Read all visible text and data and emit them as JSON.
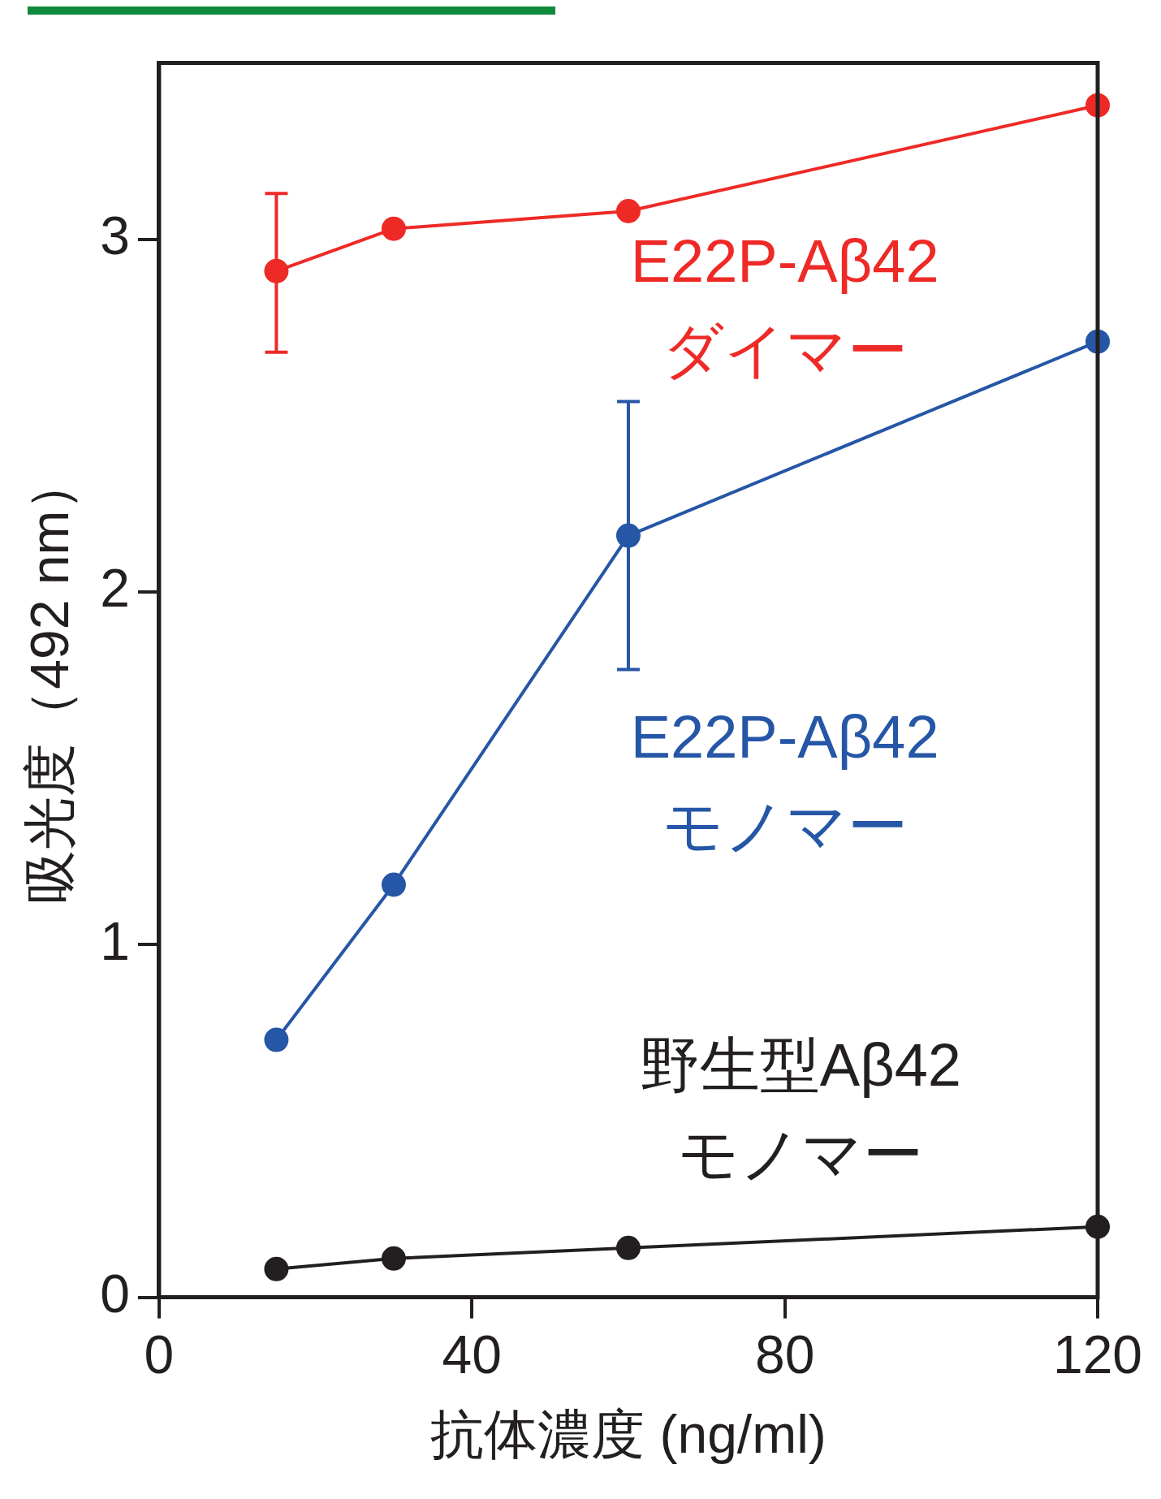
{
  "chart_data": {
    "type": "line",
    "xlabel": "抗体濃度 (ng/ml)",
    "ylabel": "吸光度（492 nm）",
    "x": [
      15,
      30,
      60,
      120
    ],
    "xlim": [
      0,
      120
    ],
    "xticks": [
      0,
      40,
      80,
      120
    ],
    "ylim": [
      0,
      3.5
    ],
    "yticks": [
      0,
      1,
      2,
      3
    ],
    "grid": false,
    "legend": false,
    "marker": "circle",
    "line_style": "solid",
    "series": [
      {
        "name": "E22P-Aβ42\nダイマー",
        "color": "#ee2a27",
        "values": [
          2.91,
          3.03,
          3.08,
          3.38
        ],
        "errors": [
          [
            2.68,
            3.13
          ],
          null,
          null,
          null
        ]
      },
      {
        "name": "E22P-Aβ42\nモノマー",
        "color": "#2656a6",
        "values": [
          0.73,
          1.17,
          2.16,
          2.71
        ],
        "errors": [
          null,
          null,
          [
            1.78,
            2.54
          ],
          null
        ]
      },
      {
        "name": "野生型Aβ42\nモノマー",
        "color": "#231f20",
        "values": [
          0.08,
          0.11,
          0.14,
          0.2
        ]
      }
    ]
  }
}
